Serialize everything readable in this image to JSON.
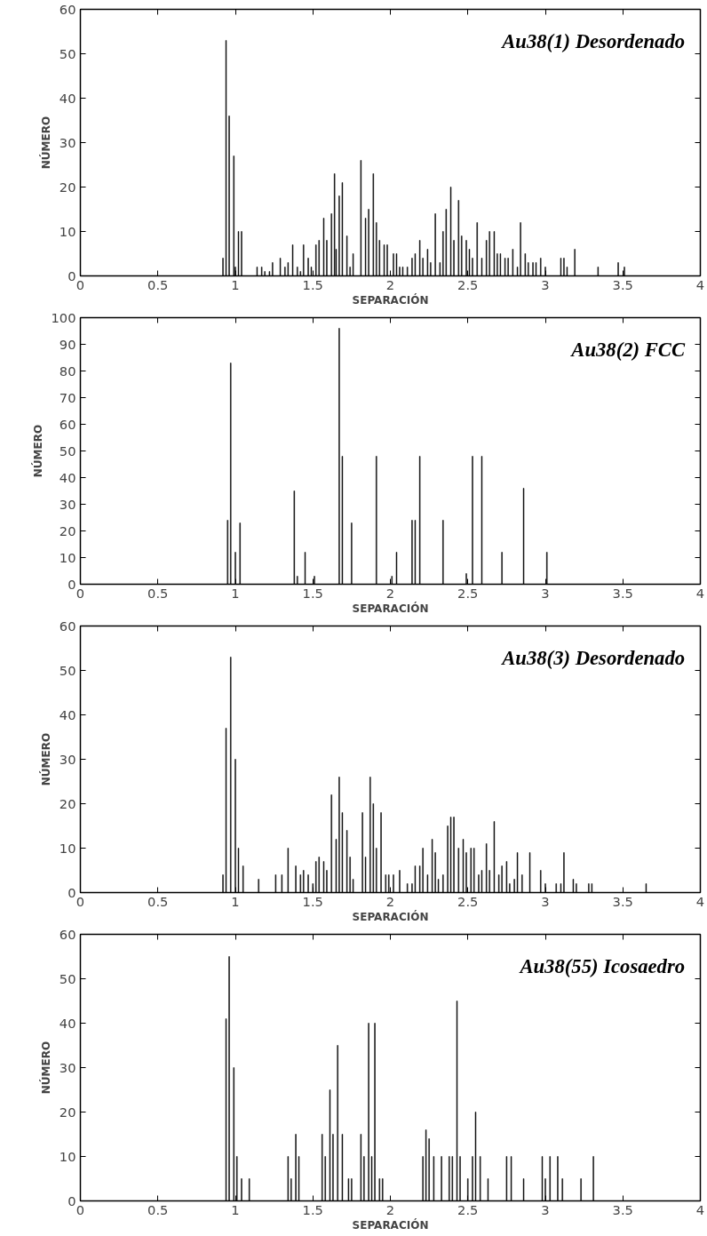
{
  "chart_data": [
    {
      "type": "bar",
      "title": "Au38(1) Desordenado",
      "xlabel": "SEPARACIÓN",
      "ylabel": "NÚMERO",
      "xlim": [
        0,
        4
      ],
      "xticks": [
        0,
        0.5,
        1,
        1.5,
        2,
        2.5,
        3,
        3.5,
        4
      ],
      "ylim": [
        0,
        60
      ],
      "yticks": [
        0,
        10,
        20,
        30,
        40,
        50,
        60
      ],
      "grid": false,
      "color": "#000000",
      "x": [
        0.92,
        0.94,
        0.96,
        0.99,
        1.0,
        1.02,
        1.04,
        1.14,
        1.17,
        1.19,
        1.22,
        1.24,
        1.29,
        1.32,
        1.34,
        1.37,
        1.4,
        1.42,
        1.44,
        1.47,
        1.49,
        1.52,
        1.54,
        1.57,
        1.59,
        1.62,
        1.64,
        1.65,
        1.67,
        1.69,
        1.72,
        1.74,
        1.76,
        1.81,
        1.84,
        1.86,
        1.89,
        1.91,
        1.93,
        1.96,
        1.98,
        2.02,
        2.04,
        2.06,
        2.08,
        2.11,
        2.14,
        2.16,
        2.19,
        2.21,
        2.24,
        2.26,
        2.29,
        2.32,
        2.34,
        2.36,
        2.39,
        2.41,
        2.44,
        2.46,
        2.49,
        2.51,
        2.53,
        2.56,
        2.59,
        2.62,
        2.64,
        2.67,
        2.69,
        2.71,
        2.74,
        2.76,
        2.79,
        2.82,
        2.84,
        2.87,
        2.89,
        2.92,
        2.94,
        2.97,
        3.0,
        3.1,
        3.12,
        3.14,
        3.19,
        3.34,
        3.47,
        3.51
      ],
      "values": [
        4,
        53,
        36,
        27,
        2,
        10,
        10,
        2,
        2,
        1,
        1,
        3,
        4,
        2,
        3,
        7,
        2,
        1,
        7,
        4,
        2,
        7,
        8,
        13,
        8,
        14,
        23,
        6,
        18,
        21,
        9,
        2,
        5,
        26,
        13,
        15,
        23,
        12,
        8,
        7,
        7,
        5,
        5,
        2,
        2,
        2,
        4,
        5,
        8,
        4,
        6,
        3,
        14,
        3,
        10,
        15,
        20,
        8,
        17,
        9,
        8,
        6,
        4,
        12,
        4,
        8,
        10,
        10,
        5,
        5,
        4,
        4,
        6,
        2,
        12,
        5,
        3,
        3,
        3,
        4,
        2,
        4,
        4,
        2,
        6,
        2,
        3,
        2
      ]
    },
    {
      "type": "bar",
      "title": "Au38(2) FCC",
      "xlabel": "SEPARACIÓN",
      "ylabel": "NÚMERO",
      "xlim": [
        0,
        4
      ],
      "xticks": [
        0,
        0.5,
        1,
        1.5,
        2,
        2.5,
        3,
        3.5,
        4
      ],
      "ylim": [
        0,
        100
      ],
      "yticks": [
        0,
        10,
        20,
        30,
        40,
        50,
        60,
        70,
        80,
        90,
        100
      ],
      "grid": false,
      "color": "#000000",
      "x": [
        0.95,
        0.97,
        1.0,
        1.03,
        1.38,
        1.4,
        1.45,
        1.51,
        1.67,
        1.69,
        1.75,
        1.91,
        2.01,
        2.04,
        2.14,
        2.16,
        2.19,
        2.34,
        2.49,
        2.53,
        2.59,
        2.72,
        2.86,
        3.01
      ],
      "values": [
        24,
        83,
        12,
        23,
        35,
        3,
        12,
        3,
        96,
        48,
        23,
        48,
        3,
        12,
        24,
        24,
        48,
        24,
        4,
        48,
        48,
        12,
        36,
        12
      ]
    },
    {
      "type": "bar",
      "title": "Au38(3) Desordenado",
      "xlabel": "SEPARACIÓN",
      "ylabel": "NÚMERO",
      "xlim": [
        0,
        4
      ],
      "xticks": [
        0,
        0.5,
        1,
        1.5,
        2,
        2.5,
        3,
        3.5,
        4
      ],
      "ylim": [
        0,
        60
      ],
      "yticks": [
        0,
        10,
        20,
        30,
        40,
        50,
        60
      ],
      "grid": false,
      "color": "#000000",
      "x": [
        0.92,
        0.94,
        0.97,
        1.0,
        1.02,
        1.05,
        1.15,
        1.26,
        1.3,
        1.34,
        1.39,
        1.42,
        1.44,
        1.47,
        1.5,
        1.52,
        1.54,
        1.57,
        1.59,
        1.62,
        1.65,
        1.67,
        1.69,
        1.72,
        1.74,
        1.76,
        1.82,
        1.84,
        1.87,
        1.89,
        1.91,
        1.94,
        1.97,
        1.99,
        2.02,
        2.06,
        2.11,
        2.14,
        2.16,
        2.19,
        2.21,
        2.24,
        2.27,
        2.29,
        2.31,
        2.34,
        2.37,
        2.39,
        2.41,
        2.44,
        2.47,
        2.49,
        2.52,
        2.54,
        2.57,
        2.59,
        2.62,
        2.64,
        2.67,
        2.7,
        2.72,
        2.75,
        2.77,
        2.8,
        2.82,
        2.85,
        2.9,
        2.97,
        3.0,
        3.07,
        3.1,
        3.12,
        3.18,
        3.2,
        3.28,
        3.3,
        3.65
      ],
      "values": [
        4,
        37,
        53,
        30,
        10,
        6,
        3,
        4,
        4,
        10,
        6,
        4,
        5,
        4,
        2,
        7,
        8,
        7,
        5,
        22,
        12,
        26,
        18,
        14,
        8,
        3,
        18,
        8,
        26,
        20,
        10,
        18,
        4,
        4,
        4,
        5,
        2,
        2,
        6,
        6,
        10,
        4,
        12,
        9,
        3,
        4,
        15,
        17,
        17,
        10,
        12,
        9,
        10,
        10,
        4,
        5,
        11,
        5,
        16,
        4,
        6,
        7,
        2,
        3,
        9,
        4,
        9,
        5,
        2,
        2,
        2,
        9,
        3,
        2,
        2,
        2,
        2
      ]
    },
    {
      "type": "bar",
      "title": "Au38(55) Icosaedro",
      "xlabel": "SEPARACIÓN",
      "ylabel": "NÚMERO",
      "xlim": [
        0,
        4
      ],
      "xticks": [
        0,
        0.5,
        1,
        1.5,
        2,
        2.5,
        3,
        3.5,
        4
      ],
      "ylim": [
        0,
        60
      ],
      "yticks": [
        0,
        10,
        20,
        30,
        40,
        50,
        60
      ],
      "grid": false,
      "color": "#000000",
      "x": [
        0.94,
        0.96,
        0.99,
        1.01,
        1.04,
        1.09,
        1.34,
        1.36,
        1.39,
        1.41,
        1.56,
        1.58,
        1.61,
        1.63,
        1.66,
        1.69,
        1.73,
        1.75,
        1.81,
        1.83,
        1.86,
        1.88,
        1.9,
        1.93,
        1.95,
        2.21,
        2.23,
        2.25,
        2.28,
        2.33,
        2.38,
        2.4,
        2.43,
        2.45,
        2.5,
        2.53,
        2.55,
        2.58,
        2.63,
        2.75,
        2.78,
        2.86,
        2.98,
        3.0,
        3.03,
        3.08,
        3.11,
        3.23,
        3.31
      ],
      "values": [
        41,
        55,
        30,
        10,
        5,
        5,
        10,
        5,
        15,
        10,
        15,
        10,
        25,
        15,
        35,
        15,
        5,
        5,
        15,
        10,
        40,
        10,
        40,
        5,
        5,
        10,
        16,
        14,
        10,
        10,
        10,
        10,
        45,
        10,
        5,
        10,
        20,
        10,
        5,
        10,
        10,
        5,
        10,
        5,
        10,
        10,
        5,
        5,
        10
      ]
    }
  ]
}
